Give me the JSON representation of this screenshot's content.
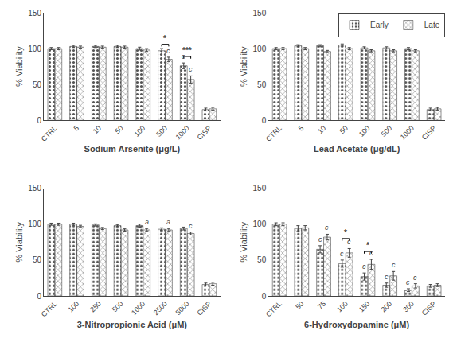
{
  "chart_data": [
    {
      "type": "bar",
      "xlabel": "Sodium Arsenite (μg/L)",
      "ylabel": "% Viability",
      "categories": [
        "CTRL",
        "5",
        "10",
        "50",
        "100",
        "500",
        "1000",
        "CISP"
      ],
      "series": [
        {
          "name": "Early",
          "color": "#555555",
          "values": [
            100,
            103,
            103,
            103,
            100,
            97,
            76,
            15
          ],
          "errors": [
            1.5,
            1.5,
            1.5,
            1.5,
            2,
            3,
            4,
            2
          ]
        },
        {
          "name": "Late",
          "color": "#aaaaaa",
          "values": [
            100,
            102,
            102,
            102,
            98,
            85,
            57,
            16
          ],
          "errors": [
            1.5,
            1.5,
            1.5,
            1.5,
            2,
            3,
            5,
            2
          ]
        }
      ],
      "ylim": [
        0,
        150
      ],
      "yticks": [
        0,
        50,
        100,
        150
      ],
      "grid": false,
      "annotations": [
        {
          "category": "500",
          "series": "Late",
          "text": "c"
        },
        {
          "category": "1000",
          "series": "Early",
          "text": "c"
        },
        {
          "category": "1000",
          "series": "Late",
          "text": "c"
        }
      ],
      "brackets": [
        {
          "category": "500",
          "y": 106,
          "drop": 3,
          "text": "*"
        },
        {
          "category": "1000",
          "y": 89,
          "drop": 3,
          "text": "***"
        }
      ]
    },
    {
      "type": "bar",
      "xlabel": "Lead Acetate (μg/dL)",
      "ylabel": "% Viability",
      "categories": [
        "CTRL",
        "5",
        "10",
        "50",
        "100",
        "500",
        "1000",
        "CISP"
      ],
      "series": [
        {
          "name": "Early",
          "color": "#555555",
          "values": [
            100,
            104,
            104,
            105,
            101,
            101,
            100,
            15
          ],
          "errors": [
            1.5,
            1.5,
            1.5,
            1.5,
            1.5,
            1.5,
            1.5,
            2
          ]
        },
        {
          "name": "Late",
          "color": "#aaaaaa",
          "values": [
            100,
            100,
            96,
            100,
            97,
            97,
            97,
            16
          ],
          "errors": [
            1.5,
            1.5,
            1.5,
            1.5,
            1.5,
            1.5,
            1.5,
            2
          ]
        }
      ],
      "ylim": [
        0,
        150
      ],
      "yticks": [
        0,
        50,
        100,
        150
      ],
      "grid": false,
      "legend": "upper right"
    },
    {
      "type": "bar",
      "xlabel": "3-Nitropropionic Acid (μM)",
      "ylabel": "% Viability",
      "categories": [
        "CTRL",
        "100",
        "250",
        "500",
        "1000",
        "2500",
        "5000",
        "CISP"
      ],
      "series": [
        {
          "name": "Early",
          "color": "#555555",
          "values": [
            100,
            100,
            99,
            98,
            98,
            93,
            94,
            16
          ],
          "errors": [
            1.5,
            1.5,
            1.5,
            1.5,
            2,
            2,
            2,
            2
          ]
        },
        {
          "name": "Late",
          "color": "#aaaaaa",
          "values": [
            100,
            97,
            94,
            92,
            92,
            92,
            87,
            17
          ],
          "errors": [
            1.5,
            1.5,
            1.5,
            1.5,
            2,
            2,
            2,
            2
          ]
        }
      ],
      "ylim": [
        0,
        150
      ],
      "yticks": [
        0,
        50,
        100,
        150
      ],
      "grid": false,
      "annotations": [
        {
          "category": "1000",
          "series": "Late",
          "text": "a"
        },
        {
          "category": "2500",
          "series": "Late",
          "text": "a"
        },
        {
          "category": "5000",
          "series": "Late",
          "text": "c"
        }
      ]
    },
    {
      "type": "bar",
      "xlabel": "6-Hydroxydopamine (μM)",
      "ylabel": "% Viability",
      "categories": [
        "CTRL",
        "50",
        "75",
        "100",
        "150",
        "200",
        "300",
        "CISP"
      ],
      "series": [
        {
          "name": "Early",
          "color": "#555555",
          "values": [
            100,
            94,
            65,
            45,
            27,
            15,
            8,
            14
          ],
          "errors": [
            2,
            4,
            5,
            5,
            5,
            3,
            2,
            2
          ]
        },
        {
          "name": "Late",
          "color": "#aaaaaa",
          "values": [
            100,
            95,
            82,
            60,
            44,
            28,
            14,
            15
          ],
          "errors": [
            2,
            3,
            4,
            6,
            7,
            6,
            3,
            2
          ]
        }
      ],
      "ylim": [
        0,
        150
      ],
      "yticks": [
        0,
        50,
        100,
        150
      ],
      "grid": false,
      "annotations": [
        {
          "category": "75",
          "series": "Early",
          "text": "c"
        },
        {
          "category": "75",
          "series": "Late",
          "text": "c"
        },
        {
          "category": "100",
          "series": "Early",
          "text": "c"
        },
        {
          "category": "100",
          "series": "Late",
          "text": "c"
        },
        {
          "category": "150",
          "series": "Early",
          "text": "c"
        },
        {
          "category": "150",
          "series": "Late",
          "text": "c"
        },
        {
          "category": "200",
          "series": "Early",
          "text": "c"
        },
        {
          "category": "200",
          "series": "Late",
          "text": "c"
        },
        {
          "category": "300",
          "series": "Early",
          "text": "c"
        },
        {
          "category": "300",
          "series": "Late",
          "text": "c"
        }
      ],
      "brackets": [
        {
          "category": "100",
          "y": 80,
          "drop": 3,
          "text": "*"
        },
        {
          "category": "150",
          "y": 62,
          "drop": 3,
          "text": "*"
        }
      ]
    }
  ]
}
